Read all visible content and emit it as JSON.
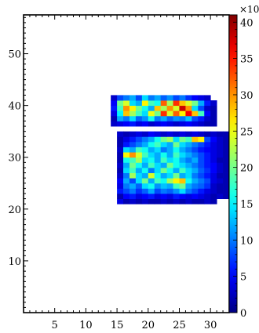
{
  "chart_data": {
    "type": "heatmap",
    "title": "",
    "xlabel": "",
    "ylabel": "",
    "xlim": [
      0,
      33
    ],
    "ylim": [
      0,
      57.5
    ],
    "xticks": [
      5,
      10,
      15,
      20,
      25,
      30
    ],
    "yticks": [
      10,
      20,
      30,
      40,
      50
    ],
    "colorbar": {
      "range": [
        0,
        41
      ],
      "ticks": [
        0,
        5,
        10,
        15,
        20,
        25,
        30,
        35,
        40
      ],
      "multiplier_label": "×10",
      "colormap": "jet"
    },
    "cell": {
      "dx": 1,
      "dy": 1
    },
    "grid": false,
    "upper_block": {
      "x0": 14,
      "y0": 36,
      "rows": [
        [
          3,
          4,
          5,
          6,
          4,
          5,
          3,
          4,
          5,
          4,
          3,
          4,
          5,
          4,
          3,
          2,
          2
        ],
        [
          2,
          12,
          10,
          14,
          9,
          11,
          16,
          10,
          12,
          9,
          11,
          10,
          13,
          8,
          6,
          3,
          2
        ],
        [
          4,
          15,
          28,
          22,
          18,
          14,
          25,
          20,
          34,
          24,
          32,
          26,
          36,
          28,
          18,
          5,
          2
        ],
        [
          6,
          18,
          30,
          26,
          20,
          16,
          12,
          28,
          22,
          30,
          24,
          38,
          30,
          14,
          8,
          3,
          2
        ],
        [
          5,
          20,
          24,
          14,
          12,
          26,
          18,
          16,
          32,
          22,
          34,
          28,
          24,
          20,
          12,
          6,
          3
        ],
        [
          3,
          8,
          10,
          12,
          8,
          14,
          10,
          12,
          9,
          11,
          8,
          10,
          7,
          5,
          4,
          3
        ]
      ]
    },
    "lower_block": {
      "x0": 15,
      "y0": 21,
      "rows": [
        [
          4,
          2,
          3,
          2,
          3,
          2,
          2,
          3,
          2,
          3,
          2,
          3,
          2,
          2,
          3,
          2
        ],
        [
          2,
          5,
          6,
          4,
          5,
          6,
          4,
          5,
          4,
          6,
          5,
          4,
          5,
          4,
          3,
          2,
          3,
          2
        ],
        [
          6,
          8,
          10,
          7,
          9,
          12,
          8,
          10,
          9,
          11,
          14,
          10,
          8,
          6,
          4,
          3,
          2,
          2
        ],
        [
          4,
          10,
          12,
          9,
          14,
          16,
          11,
          13,
          12,
          18,
          20,
          12,
          10,
          9,
          7,
          3,
          2,
          2
        ],
        [
          5,
          12,
          8,
          14,
          20,
          12,
          18,
          16,
          22,
          26,
          28,
          16,
          12,
          10,
          8,
          4,
          3,
          2
        ],
        [
          3,
          10,
          22,
          14,
          12,
          24,
          16,
          12,
          14,
          20,
          12,
          14,
          10,
          8,
          6,
          4,
          2,
          2
        ],
        [
          2,
          14,
          18,
          12,
          16,
          10,
          14,
          20,
          16,
          12,
          18,
          14,
          12,
          9,
          7,
          5,
          3,
          2
        ],
        [
          3,
          12,
          20,
          16,
          12,
          18,
          14,
          12,
          20,
          16,
          14,
          12,
          10,
          8,
          6,
          5,
          3,
          2
        ],
        [
          2,
          16,
          18,
          22,
          14,
          16,
          12,
          18,
          14,
          16,
          12,
          10,
          12,
          8,
          6,
          4,
          2,
          2
        ],
        [
          2,
          26,
          30,
          24,
          18,
          14,
          12,
          16,
          12,
          18,
          14,
          12,
          10,
          8,
          6,
          4,
          3,
          2
        ],
        [
          3,
          14,
          12,
          18,
          16,
          12,
          14,
          10,
          12,
          16,
          12,
          10,
          8,
          6,
          5,
          4,
          3,
          2
        ],
        [
          2,
          6,
          8,
          10,
          12,
          16,
          18,
          14,
          12,
          20,
          14,
          12,
          10,
          8,
          6,
          4,
          3,
          2
        ],
        [
          2,
          4,
          6,
          8,
          10,
          12,
          16,
          20,
          22,
          14,
          20,
          18,
          28,
          26,
          8,
          5,
          3,
          2
        ],
        [
          3,
          2,
          3,
          4,
          3,
          5,
          4,
          3,
          4,
          3,
          4,
          3,
          4,
          3,
          2,
          3,
          2,
          2
        ]
      ]
    }
  }
}
